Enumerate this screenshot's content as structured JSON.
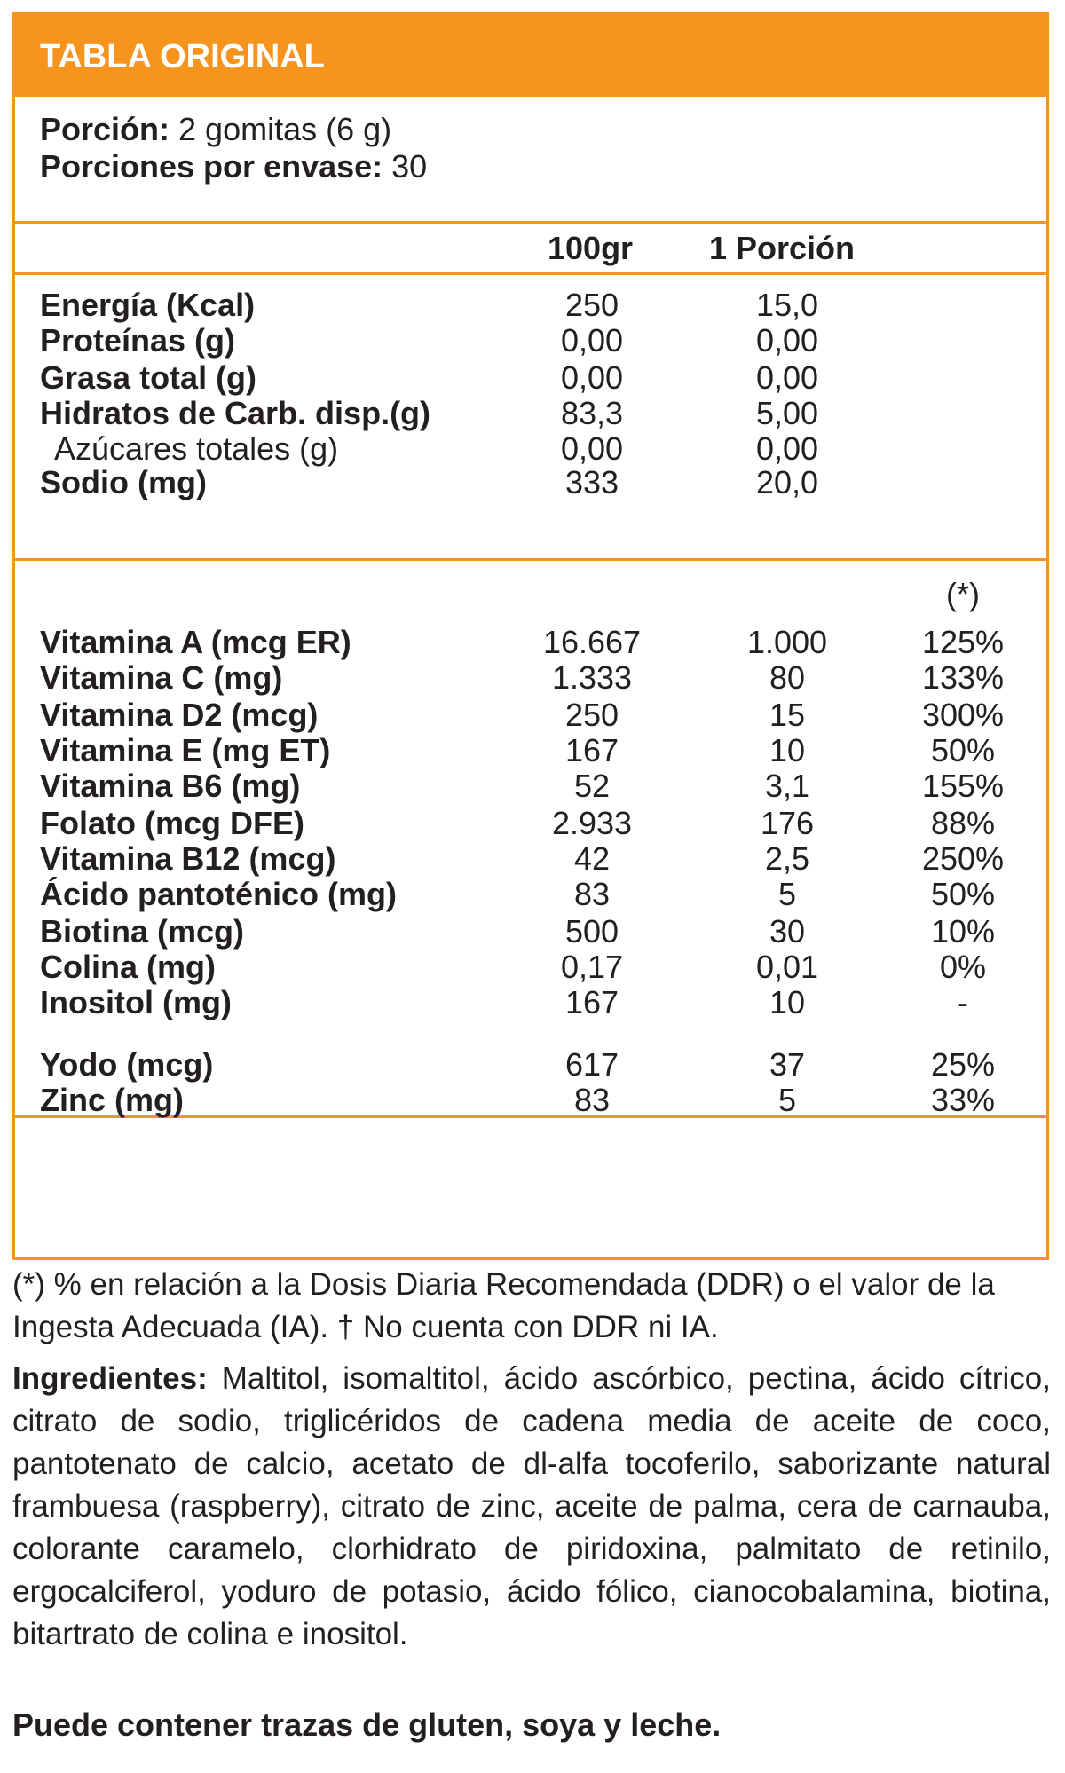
{
  "header": {
    "title": "TABLA ORIGINAL"
  },
  "serving": {
    "portion_label": "Porción:",
    "portion_value": " 2 gomitas (6 g)",
    "per_pack_label": "Porciones por envase:",
    "per_pack_value": " 30"
  },
  "columns": {
    "per100": "100gr",
    "per_portion": "1 Porción",
    "pct_marker": "(*)"
  },
  "macros": [
    {
      "label": "Energía (Kcal)",
      "v100": "250",
      "vp": "15,0",
      "sub": false
    },
    {
      "label": "Proteínas (g)",
      "v100": "0,00",
      "vp": "0,00",
      "sub": false
    },
    {
      "label": "Grasa total (g)",
      "v100": "0,00",
      "vp": "0,00",
      "sub": false
    },
    {
      "label": "Hidratos de Carb. disp.(g)",
      "v100": "83,3",
      "vp": "5,00",
      "sub": false
    },
    {
      "label": "Azúcares totales (g)",
      "v100": "0,00",
      "vp": "0,00",
      "sub": true
    },
    {
      "label": "Sodio (mg)",
      "v100": "333",
      "vp": "20,0",
      "sub": false
    }
  ],
  "vitamins": [
    {
      "label": "Vitamina A (mcg ER)",
      "v100": "16.667",
      "vp": "1.000",
      "pct": "125%"
    },
    {
      "label": "Vitamina C (mg)",
      "v100": "1.333",
      "vp": "80",
      "pct": "133%"
    },
    {
      "label": "Vitamina D2 (mcg)",
      "v100": "250",
      "vp": "15",
      "pct": "300%"
    },
    {
      "label": "Vitamina E (mg ET)",
      "v100": "167",
      "vp": "10",
      "pct": "50%"
    },
    {
      "label": "Vitamina B6 (mg)",
      "v100": "52",
      "vp": "3,1",
      "pct": "155%"
    },
    {
      "label": "Folato (mcg DFE)",
      "v100": "2.933",
      "vp": "176",
      "pct": "88%"
    },
    {
      "label": "Vitamina B12 (mcg)",
      "v100": "42",
      "vp": "2,5",
      "pct": "250%"
    },
    {
      "label": "Ácido pantoténico (mg)",
      "v100": "83",
      "vp": "5",
      "pct": "50%"
    },
    {
      "label": "Biotina (mcg)",
      "v100": "500",
      "vp": "30",
      "pct": "10%"
    },
    {
      "label": "Colina (mg)",
      "v100": "0,17",
      "vp": "0,01",
      "pct": "0%"
    },
    {
      "label": "Inositol (mg)",
      "v100": "167",
      "vp": "10",
      "pct": "-"
    }
  ],
  "minerals": [
    {
      "label": "Yodo (mcg)",
      "v100": "617",
      "vp": "37",
      "pct": "25%"
    },
    {
      "label": "Zinc (mg)",
      "v100": "83",
      "vp": "5",
      "pct": "33%"
    }
  ],
  "footnote": "(*) % en relación a la Dosis Diaria Recomendada (DDR) o el valor de la Ingesta Adecuada (IA). † No cuenta con DDR ni IA.",
  "ingredients": {
    "label": "Ingredientes:",
    "text": " Maltitol, isomaltitol, ácido ascórbico, pectina, ácido cítrico, citrato de sodio, triglicéridos de cadena media de aceite de coco, pantotenato de calcio, acetato de dl-alfa tocoferilo, saborizante natural frambuesa (raspberry), citrato de zinc, aceite de palma, cera de carnauba, colorante caramelo, clorhidrato de piridoxina, palmitato de retinilo, ergocalciferol, yoduro de potasio, ácido fólico, cianocobalamina, biotina, bitartrato de colina e inositol."
  },
  "allergen": "Puede contener trazas de gluten, soya y leche."
}
